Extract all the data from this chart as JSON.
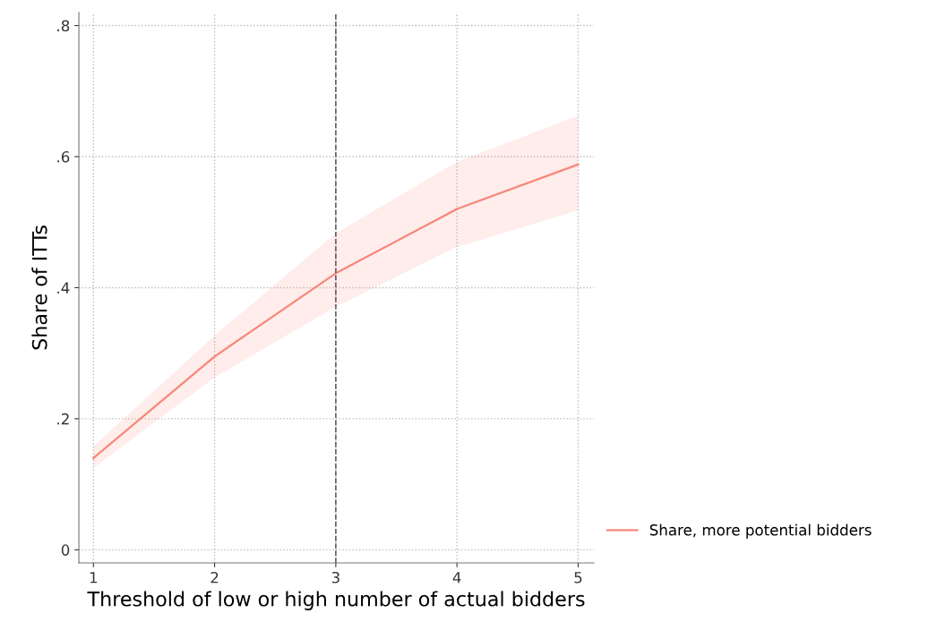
{
  "chart_data": {
    "type": "line",
    "xlabel": "Threshold of low or high number of actual bidders",
    "ylabel": "Share of ITTs",
    "x": [
      1,
      2,
      3,
      4,
      5
    ],
    "series": [
      {
        "name": "Share, more potential bidders",
        "color": "#f8877a",
        "values": [
          0.14,
          0.295,
          0.422,
          0.52,
          0.588
        ],
        "lower": [
          0.125,
          0.263,
          0.371,
          0.462,
          0.518
        ],
        "upper": [
          0.158,
          0.327,
          0.483,
          0.592,
          0.662
        ]
      }
    ],
    "xlim": [
      0.88,
      5.13
    ],
    "ylim": [
      -0.02,
      0.82
    ],
    "xticks": [
      1,
      2,
      3,
      4,
      5
    ],
    "yticks": [
      0,
      {
        "value": 0.2,
        "label": ".2"
      },
      {
        "value": 0.4,
        "label": ".4"
      },
      {
        "value": 0.6,
        "label": ".6"
      },
      {
        "value": 0.8,
        "label": ".8"
      }
    ],
    "ref_lines": [
      {
        "axis": "x",
        "value": 3,
        "color": "#555555",
        "line_style": "dashed"
      }
    ],
    "grid": true,
    "legend": "bottom right",
    "marker": "none",
    "line_style": "solid"
  }
}
